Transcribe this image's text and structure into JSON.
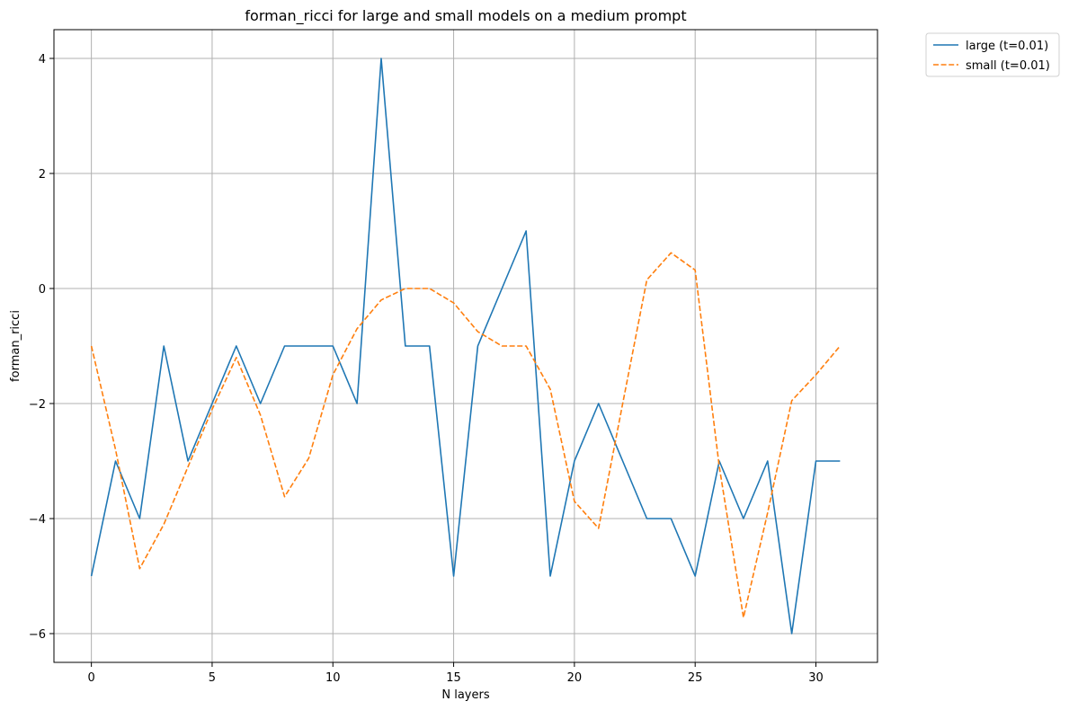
{
  "chart_data": {
    "type": "line",
    "title": "forman_ricci for large and small models on a medium prompt",
    "xlabel": "N layers",
    "ylabel": "forman_ricci",
    "xlim": [
      -1.55,
      32.55
    ],
    "ylim": [
      -6.5,
      4.5
    ],
    "xticks": [
      0,
      5,
      10,
      15,
      20,
      25,
      30
    ],
    "yticks": [
      -6,
      -4,
      -2,
      0,
      2,
      4
    ],
    "grid": true,
    "legend_position": "outside-top-right",
    "x": [
      0,
      1,
      2,
      3,
      4,
      5,
      6,
      7,
      8,
      9,
      10,
      11,
      12,
      13,
      14,
      15,
      16,
      17,
      18,
      19,
      20,
      21,
      22,
      23,
      24,
      25,
      26,
      27,
      28,
      29,
      30,
      31
    ],
    "series": [
      {
        "name": "large (t=0.01)",
        "color": "#1f77b4",
        "style": "solid",
        "values": [
          -5,
          -3,
          -4,
          -1,
          -3,
          -2,
          -1,
          -2,
          -1,
          -1,
          -1,
          -2,
          4,
          -1,
          -1,
          -5,
          -1,
          0,
          1,
          -5,
          -3,
          -2,
          -3,
          -4,
          -4,
          -5,
          -3,
          -4,
          -3,
          -6,
          -3,
          -3
        ]
      },
      {
        "name": "small (t=0.01)",
        "color": "#ff7f0e",
        "style": "dashed",
        "values": [
          -1,
          -2.8,
          -4.87,
          -4.1,
          -3.1,
          -2.1,
          -1.2,
          -2.2,
          -3.62,
          -2.95,
          -1.5,
          -0.7,
          -0.2,
          0,
          0,
          -0.25,
          -0.75,
          -1,
          -1,
          -1.75,
          -3.7,
          -4.17,
          -2,
          0.15,
          0.62,
          0.32,
          -3.1,
          -5.72,
          -3.9,
          -1.95,
          -1.5,
          -1
        ]
      }
    ]
  }
}
